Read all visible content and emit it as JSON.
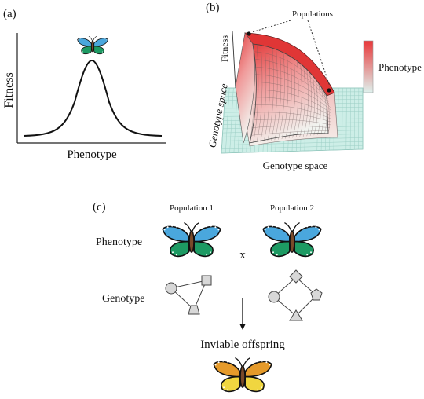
{
  "panel_a": {
    "tag": "(a)",
    "ylabel": "Fitness",
    "xlabel": "Phenotype",
    "butterfly_colors": {
      "upper": "#4aa7dd",
      "lower": "#1d9a63",
      "body": "#7a4a2a"
    }
  },
  "panel_b": {
    "tag": "(b)",
    "z_label": "Fitness",
    "y_label": "Genotype space",
    "x_label": "Genotype space",
    "annotation": "Populations",
    "colorbar_label": "Phenotype",
    "colorbar_colors": {
      "high": "#e8383a",
      "low": "#dff2ee"
    },
    "grid_color": "#bfe3dc"
  },
  "panel_c": {
    "tag": "(c)",
    "row_phenotype": "Phenotype",
    "row_genotype": "Genotype",
    "pop1": "Population 1",
    "pop2": "Population 2",
    "cross_symbol": "x",
    "result": "Inviable offspring",
    "parent_colors": {
      "upper": "#4aa7dd",
      "lower": "#1d9a63",
      "body": "#7a4a2a"
    },
    "offspring_colors": {
      "upper": "#e59a2a",
      "lower": "#f0d640",
      "body": "#7a4a2a"
    }
  }
}
